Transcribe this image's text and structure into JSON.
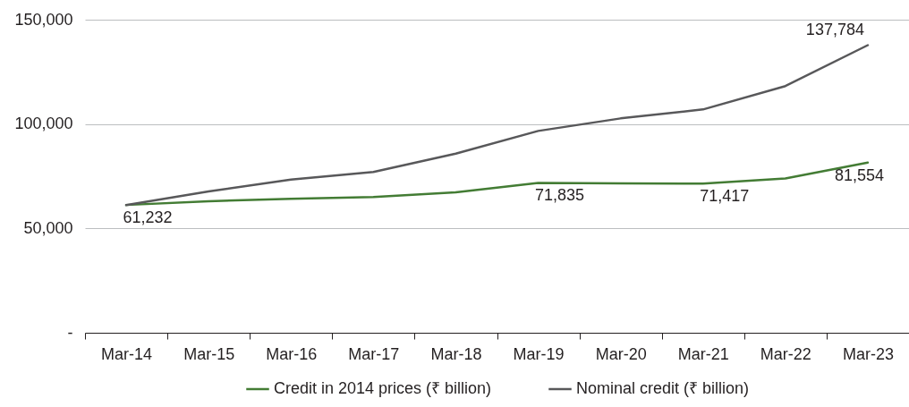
{
  "chart_data": {
    "type": "line",
    "categories": [
      "Mar-14",
      "Mar-15",
      "Mar-16",
      "Mar-17",
      "Mar-18",
      "Mar-19",
      "Mar-20",
      "Mar-21",
      "Mar-22",
      "Mar-23"
    ],
    "series": [
      {
        "name": "Credit in 2014 prices (₹ billion)",
        "color": "#437c34",
        "values": [
          61232,
          63000,
          64200,
          65000,
          67300,
          71835,
          71600,
          71417,
          73900,
          81554
        ],
        "value_labels": [
          "61,232",
          null,
          null,
          null,
          null,
          "71,835",
          null,
          "71,417",
          null,
          "81,554"
        ]
      },
      {
        "name": "Nominal credit (₹ billion)",
        "color": "#58585a",
        "values": [
          61200,
          67700,
          73400,
          77000,
          85800,
          96700,
          102700,
          107000,
          118200,
          137784
        ],
        "value_labels": [
          null,
          null,
          null,
          null,
          null,
          null,
          null,
          null,
          null,
          "137,784"
        ]
      }
    ],
    "ylim": [
      0,
      150000
    ],
    "yticks": [
      {
        "value": 0,
        "label": "-"
      },
      {
        "value": 50000,
        "label": "50,000"
      },
      {
        "value": 100000,
        "label": "100,000"
      },
      {
        "value": 150000,
        "label": "150,000"
      }
    ],
    "grid": "y",
    "legend": "bottom"
  }
}
